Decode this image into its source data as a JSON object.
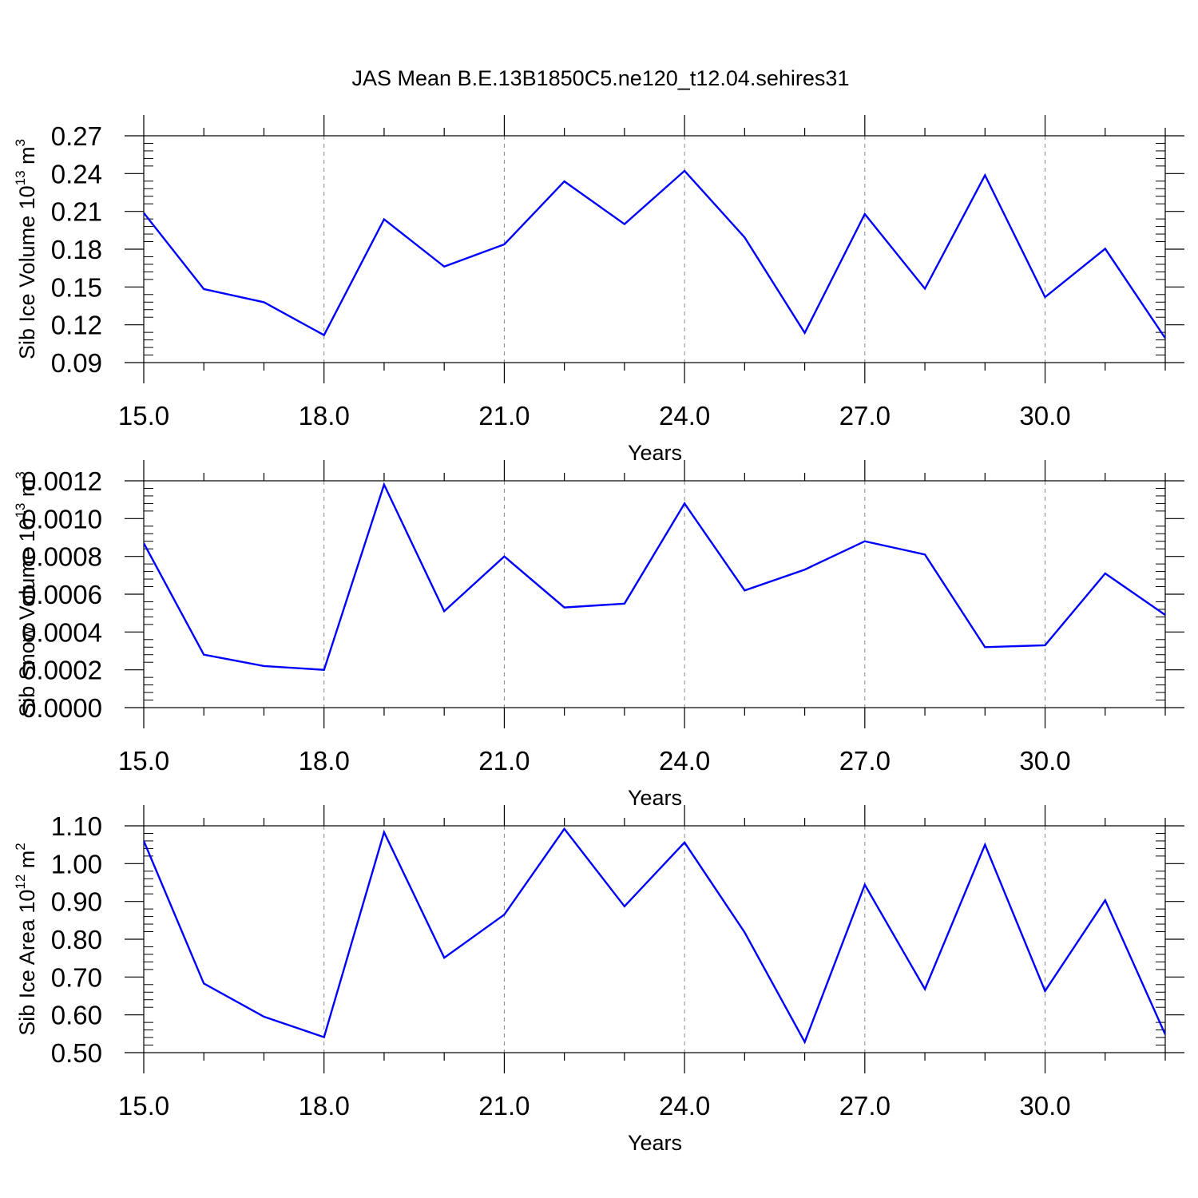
{
  "title": "JAS Mean B.E.13B1850C5.ne120_t12.04.sehires31",
  "colors": {
    "line": "#0000ff",
    "axis": "#000000",
    "grid": "#888888"
  },
  "chart_data": [
    {
      "type": "line",
      "xlabel": "Years",
      "ylabel": {
        "prefix": "Sib Ice Volume 10",
        "exponent": "13",
        "unit": " m",
        "unit_exponent": "3"
      },
      "x_tick_labels": [
        "15.0",
        "18.0",
        "21.0",
        "24.0",
        "27.0",
        "30.0"
      ],
      "y_tick_labels": [
        "0.09",
        "0.12",
        "0.15",
        "0.18",
        "0.21",
        "0.24",
        "0.27"
      ],
      "xlim": [
        15,
        32
      ],
      "ylim": [
        0.09,
        0.27
      ],
      "x": [
        15,
        16,
        17,
        18,
        19,
        20,
        21,
        22,
        23,
        24,
        25,
        26,
        27,
        28,
        29,
        30,
        31,
        32
      ],
      "values": [
        0.2088,
        0.1484,
        0.1379,
        0.1118,
        0.2037,
        0.1662,
        0.1838,
        0.2338,
        0.1999,
        0.2422,
        0.1893,
        0.1136,
        0.2079,
        0.1486,
        0.2387,
        0.142,
        0.1804,
        0.1093
      ]
    },
    {
      "type": "line",
      "xlabel": "Years",
      "ylabel": {
        "prefix": "Sib Snow Volume 10",
        "exponent": "13",
        "unit": " m",
        "unit_exponent": "3"
      },
      "x_tick_labels": [
        "15.0",
        "18.0",
        "21.0",
        "24.0",
        "27.0",
        "30.0"
      ],
      "y_tick_labels": [
        "0.0000",
        "0.0002",
        "0.0004",
        "0.0006",
        "0.0008",
        "0.0010",
        "0.0012"
      ],
      "xlim": [
        15,
        32
      ],
      "ylim": [
        0.0,
        0.0012
      ],
      "x": [
        15,
        16,
        17,
        18,
        19,
        20,
        21,
        22,
        23,
        24,
        25,
        26,
        27,
        28,
        29,
        30,
        31,
        32
      ],
      "values": [
        0.00087,
        0.00028,
        0.00022,
        0.0002,
        0.00118,
        0.00051,
        0.0008,
        0.00053,
        0.00055,
        0.00108,
        0.00062,
        0.00073,
        0.00088,
        0.00081,
        0.00032,
        0.00033,
        0.00071,
        0.00049
      ]
    },
    {
      "type": "line",
      "xlabel": "Years",
      "ylabel": {
        "prefix": "Sib Ice Area 10",
        "exponent": "12",
        "unit": " m",
        "unit_exponent": "2"
      },
      "x_tick_labels": [
        "15.0",
        "18.0",
        "21.0",
        "24.0",
        "27.0",
        "30.0"
      ],
      "y_tick_labels": [
        "0.50",
        "0.60",
        "0.70",
        "0.80",
        "0.90",
        "1.00",
        "1.10"
      ],
      "xlim": [
        15,
        32
      ],
      "ylim": [
        0.5,
        1.1
      ],
      "x": [
        15,
        16,
        17,
        18,
        19,
        20,
        21,
        22,
        23,
        24,
        25,
        26,
        27,
        28,
        29,
        30,
        31,
        32
      ],
      "values": [
        1.06,
        0.683,
        0.595,
        0.541,
        1.083,
        0.751,
        0.865,
        1.092,
        0.887,
        1.056,
        0.818,
        0.528,
        0.944,
        0.668,
        1.05,
        0.663,
        0.903,
        0.548
      ]
    }
  ]
}
